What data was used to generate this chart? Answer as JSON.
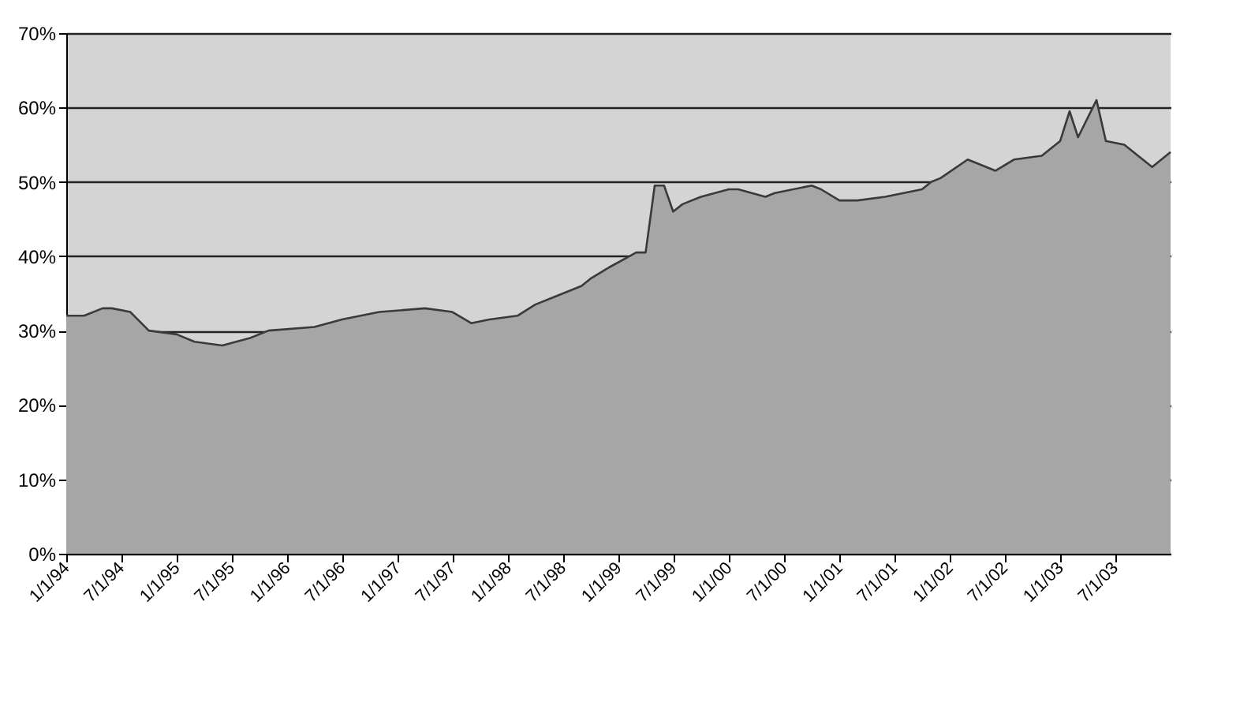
{
  "chart_data": {
    "type": "area",
    "x": [
      "1994-01",
      "1994-03",
      "1994-05",
      "1994-06",
      "1994-08",
      "1994-10",
      "1995-01",
      "1995-03",
      "1995-06",
      "1995-09",
      "1995-11",
      "1996-04",
      "1996-07",
      "1996-11",
      "1997-04",
      "1997-07",
      "1997-09",
      "1997-11",
      "1998-02",
      "1998-04",
      "1998-06",
      "1998-09",
      "1998-10",
      "1998-12",
      "1999-03",
      "1999-04",
      "1999-05",
      "1999-06",
      "1999-07",
      "1999-08",
      "1999-10",
      "2000-01",
      "2000-02",
      "2000-05",
      "2000-06",
      "2000-10",
      "2000-11",
      "2001-01",
      "2001-03",
      "2001-06",
      "2001-10",
      "2001-11",
      "2001-12",
      "2002-03",
      "2002-04",
      "2002-06",
      "2002-08",
      "2002-11",
      "2003-01",
      "2003-02",
      "2003-03",
      "2003-05",
      "2003-06",
      "2003-08",
      "2003-11",
      "2004-01"
    ],
    "series": [
      {
        "color": "#a6a6a6",
        "values": [
          32,
          32,
          33,
          33,
          32.5,
          30,
          29.5,
          28.5,
          28,
          29,
          30,
          30.5,
          31.5,
          32.5,
          33,
          32.5,
          31,
          31.5,
          32,
          33.5,
          34.5,
          36,
          37,
          38.5,
          40.5,
          40.5,
          49.5,
          49.5,
          46,
          47,
          48,
          49,
          49,
          48,
          48.5,
          49.5,
          49,
          47.5,
          47.5,
          48,
          49,
          50,
          50.5,
          53,
          52.5,
          51.5,
          53,
          53.5,
          55.5,
          59.5,
          56,
          61,
          55.5,
          55,
          52,
          54
        ]
      }
    ],
    "xlim": [
      "1994-01",
      "2004-01"
    ],
    "xticks": [
      {
        "value": "1994-01-01",
        "label": "1/1/94"
      },
      {
        "value": "1994-07-01",
        "label": "7/1/94"
      },
      {
        "value": "1995-01-01",
        "label": "1/1/95"
      },
      {
        "value": "1995-07-01",
        "label": "7/1/95"
      },
      {
        "value": "1996-01-01",
        "label": "1/1/96"
      },
      {
        "value": "1996-07-01",
        "label": "7/1/96"
      },
      {
        "value": "1997-01-01",
        "label": "1/1/97"
      },
      {
        "value": "1997-07-01",
        "label": "7/1/97"
      },
      {
        "value": "1998-01-01",
        "label": "1/1/98"
      },
      {
        "value": "1998-07-01",
        "label": "7/1/98"
      },
      {
        "value": "1999-01-01",
        "label": "1/1/99"
      },
      {
        "value": "1999-07-01",
        "label": "7/1/99"
      },
      {
        "value": "2000-01-01",
        "label": "1/1/00"
      },
      {
        "value": "2000-07-01",
        "label": "7/1/00"
      },
      {
        "value": "2001-01-01",
        "label": "1/1/01"
      },
      {
        "value": "2001-07-01",
        "label": "7/1/01"
      },
      {
        "value": "2002-01-01",
        "label": "1/1/02"
      },
      {
        "value": "2002-07-01",
        "label": "7/1/02"
      },
      {
        "value": "2003-01-01",
        "label": "1/1/03"
      },
      {
        "value": "2003-07-01",
        "label": "7/1/03"
      }
    ],
    "ylim": [
      0,
      70
    ],
    "yticks": [
      {
        "value": 0,
        "label": "0%"
      },
      {
        "value": 10,
        "label": "10%"
      },
      {
        "value": 20,
        "label": "20%"
      },
      {
        "value": 30,
        "label": "30%"
      },
      {
        "value": 40,
        "label": "40%"
      },
      {
        "value": 50,
        "label": "50%"
      },
      {
        "value": 60,
        "label": "60%"
      },
      {
        "value": 70,
        "label": "70%"
      }
    ],
    "grid": "y"
  }
}
